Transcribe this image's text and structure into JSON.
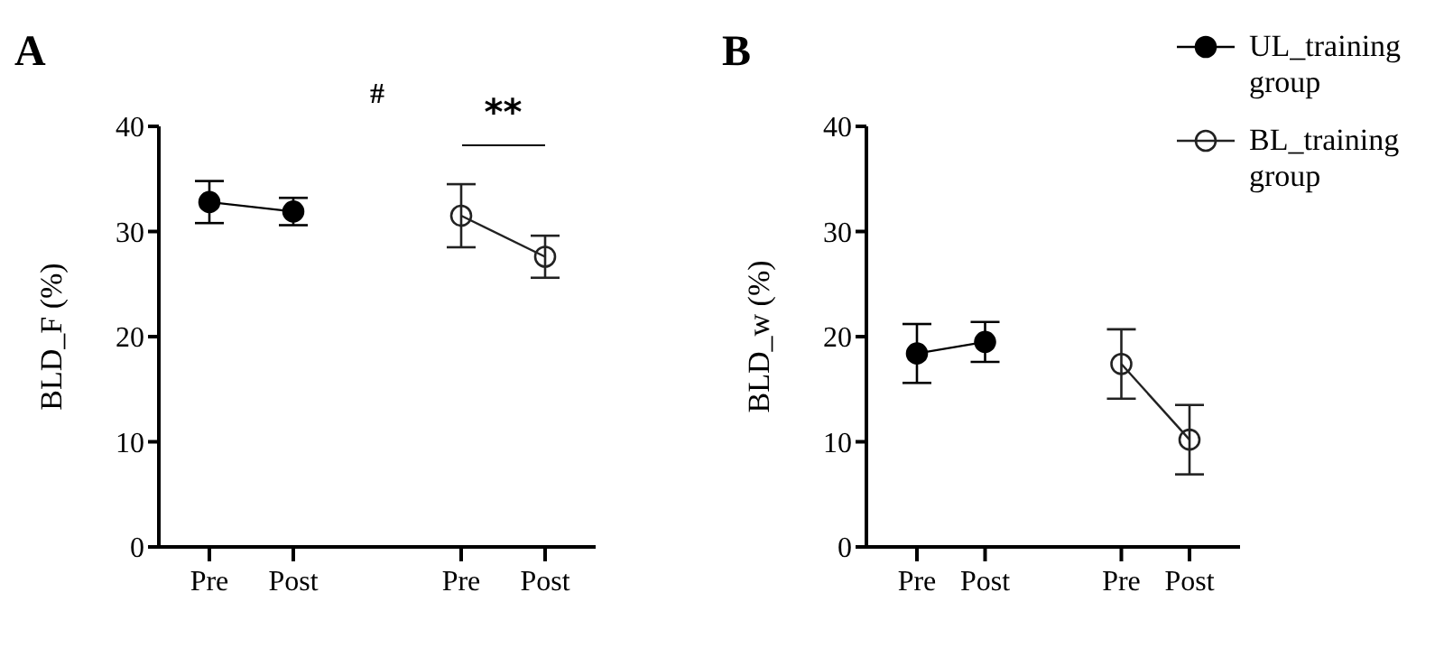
{
  "chart_data": [
    {
      "type": "line",
      "title": "A",
      "ylabel": "BLD_F (%)",
      "categories": [
        "Pre",
        "Post",
        null,
        "Pre",
        "Post"
      ],
      "ylim": [
        0,
        40
      ],
      "yticks": [
        0,
        10,
        20,
        30,
        40
      ],
      "grid": false,
      "legend": false,
      "marker": "circle",
      "line_style": "solid",
      "annotations": [
        "#",
        "**"
      ],
      "series": [
        {
          "color": "#000000",
          "values": [
            32.8,
            31.9,
            null,
            null,
            null
          ],
          "errors": [
            2,
            1.3,
            null,
            null,
            null
          ]
        },
        {
          "color": "#222222",
          "values": [
            null,
            null,
            null,
            31.5,
            27.6
          ],
          "errors": [
            null,
            null,
            null,
            3,
            2
          ]
        }
      ]
    },
    {
      "type": "line",
      "title": "B",
      "ylabel": "BLD_w (%)",
      "categories": [
        "Pre",
        "Post",
        null,
        "Pre",
        "Post"
      ],
      "ylim": [
        0,
        40
      ],
      "yticks": [
        0,
        10,
        20,
        30,
        40
      ],
      "grid": false,
      "legend": "right",
      "marker": "circle",
      "line_style": "solid",
      "series": [
        {
          "name": "UL_training group",
          "color": "#000000",
          "values": [
            18.4,
            19.5,
            null,
            null,
            null
          ],
          "errors": [
            2.8,
            1.9,
            null,
            null,
            null
          ]
        },
        {
          "name": "BL_training group",
          "color": "#222222",
          "values": [
            null,
            null,
            null,
            17.4,
            10.2
          ],
          "errors": [
            null,
            null,
            null,
            3.3,
            3.3
          ]
        }
      ]
    }
  ]
}
